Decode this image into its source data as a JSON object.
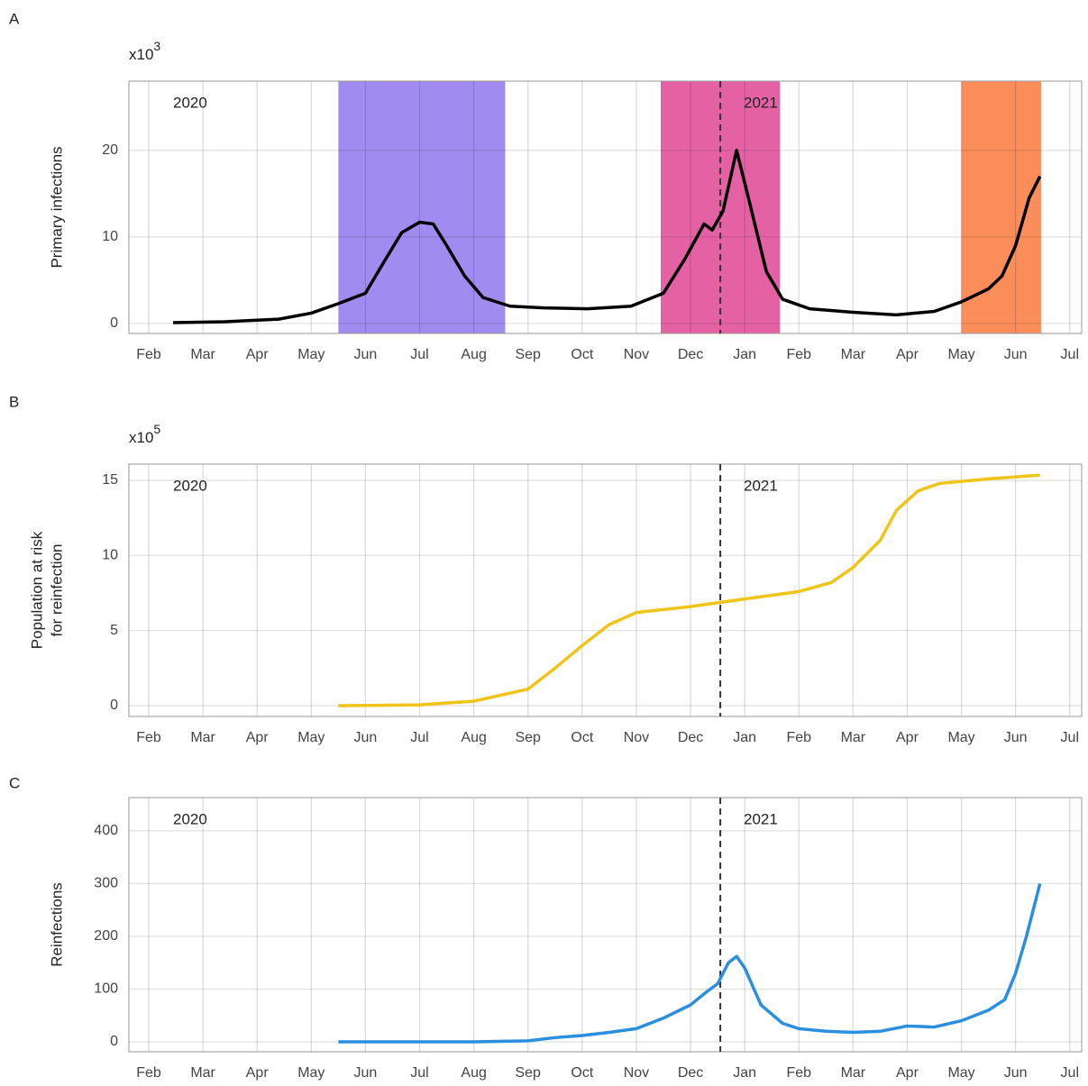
{
  "chart_data": [
    {
      "type": "line",
      "panel_label": "A",
      "scale_label": "x10",
      "scale_exponent": "3",
      "ylabel": [
        "Primary infections"
      ],
      "year_labels": [
        "2020",
        "2021"
      ],
      "reference_line": 10.55,
      "shaded_regions": [
        {
          "start": 3.5,
          "end": 6.58,
          "color": "#a08cf0"
        },
        {
          "start": 9.45,
          "end": 11.65,
          "color": "#e462a4"
        },
        {
          "start": 15.0,
          "end": 16.47,
          "color": "#fb8d5b"
        }
      ],
      "xlim": [
        -0.366,
        17.22
      ],
      "ylim": [
        -1.15,
        28.0
      ],
      "yticks": [
        0,
        10,
        20
      ],
      "xticks": [
        {
          "value": 0,
          "label": "Feb"
        },
        {
          "value": 1,
          "label": "Mar"
        },
        {
          "value": 2,
          "label": "Apr"
        },
        {
          "value": 3,
          "label": "May"
        },
        {
          "value": 4,
          "label": "Jun"
        },
        {
          "value": 5,
          "label": "Jul"
        },
        {
          "value": 6,
          "label": "Aug"
        },
        {
          "value": 7,
          "label": "Sep"
        },
        {
          "value": 8,
          "label": "Oct"
        },
        {
          "value": 9,
          "label": "Nov"
        },
        {
          "value": 10,
          "label": "Dec"
        },
        {
          "value": 11,
          "label": "Jan"
        },
        {
          "value": 12,
          "label": "Feb"
        },
        {
          "value": 13,
          "label": "Mar"
        },
        {
          "value": 14,
          "label": "Apr"
        },
        {
          "value": 15,
          "label": "May"
        },
        {
          "value": 16,
          "label": "Jun"
        },
        {
          "value": 17,
          "label": "Jul"
        }
      ],
      "color": "#000000",
      "x": [
        0.45,
        1.4,
        2.4,
        3.0,
        3.5,
        4.0,
        4.33,
        4.67,
        5.0,
        5.25,
        5.5,
        5.83,
        6.17,
        6.67,
        7.3,
        8.1,
        8.9,
        9.5,
        9.9,
        10.25,
        10.4,
        10.6,
        10.85,
        11.05,
        11.4,
        11.7,
        12.2,
        13.0,
        13.8,
        14.5,
        15.0,
        15.5,
        15.75,
        16.0,
        16.25,
        16.45
      ],
      "values": [
        0.1,
        0.2,
        0.5,
        1.2,
        2.3,
        3.5,
        7,
        10.5,
        11.7,
        11.5,
        9,
        5.5,
        3,
        2,
        1.8,
        1.7,
        2.0,
        3.5,
        7.5,
        11.5,
        10.8,
        13,
        20,
        15,
        6,
        2.8,
        1.7,
        1.3,
        1.0,
        1.4,
        2.5,
        4,
        5.5,
        9,
        14.5,
        17
      ]
    },
    {
      "type": "line",
      "panel_label": "B",
      "scale_label": "x10",
      "scale_exponent": "5",
      "ylabel": [
        "Population at risk",
        "for reinfection"
      ],
      "year_labels": [
        "2020",
        "2021"
      ],
      "reference_line": 10.55,
      "shaded_regions": [],
      "xlim": [
        -0.366,
        17.22
      ],
      "ylim": [
        -0.72,
        16.08
      ],
      "yticks": [
        0,
        5,
        10,
        15
      ],
      "xticks": [
        {
          "value": 0,
          "label": "Feb"
        },
        {
          "value": 1,
          "label": "Mar"
        },
        {
          "value": 2,
          "label": "Apr"
        },
        {
          "value": 3,
          "label": "May"
        },
        {
          "value": 4,
          "label": "Jun"
        },
        {
          "value": 5,
          "label": "Jul"
        },
        {
          "value": 6,
          "label": "Aug"
        },
        {
          "value": 7,
          "label": "Sep"
        },
        {
          "value": 8,
          "label": "Oct"
        },
        {
          "value": 9,
          "label": "Nov"
        },
        {
          "value": 10,
          "label": "Dec"
        },
        {
          "value": 11,
          "label": "Jan"
        },
        {
          "value": 12,
          "label": "Feb"
        },
        {
          "value": 13,
          "label": "Mar"
        },
        {
          "value": 14,
          "label": "Apr"
        },
        {
          "value": 15,
          "label": "May"
        },
        {
          "value": 16,
          "label": "Jun"
        },
        {
          "value": 17,
          "label": "Jul"
        }
      ],
      "color": "#f0c419",
      "x": [
        3.5,
        5.0,
        6.0,
        7.0,
        7.5,
        8.0,
        8.5,
        9.0,
        10.0,
        11.0,
        12.0,
        12.6,
        13.0,
        13.5,
        13.8,
        14.2,
        14.6,
        15.5,
        16.45
      ],
      "values": [
        0,
        0.05,
        0.3,
        1.1,
        2.5,
        4,
        5.4,
        6.2,
        6.6,
        7.1,
        7.6,
        8.2,
        9.2,
        11,
        13,
        14.3,
        14.8,
        15.1,
        15.35
      ]
    },
    {
      "type": "line",
      "panel_label": "C",
      "ylabel": [
        "Reinfections"
      ],
      "year_labels": [
        "2020",
        "2021"
      ],
      "reference_line": 10.55,
      "shaded_regions": [],
      "xlim": [
        -0.366,
        17.22
      ],
      "ylim": [
        -18.8,
        463
      ],
      "yticks": [
        0,
        100,
        200,
        300,
        400
      ],
      "xticks": [
        {
          "value": 0,
          "label": "Feb"
        },
        {
          "value": 1,
          "label": "Mar"
        },
        {
          "value": 2,
          "label": "Apr"
        },
        {
          "value": 3,
          "label": "May"
        },
        {
          "value": 4,
          "label": "Jun"
        },
        {
          "value": 5,
          "label": "Jul"
        },
        {
          "value": 6,
          "label": "Aug"
        },
        {
          "value": 7,
          "label": "Sep"
        },
        {
          "value": 8,
          "label": "Oct"
        },
        {
          "value": 9,
          "label": "Nov"
        },
        {
          "value": 10,
          "label": "Dec"
        },
        {
          "value": 11,
          "label": "Jan"
        },
        {
          "value": 12,
          "label": "Feb"
        },
        {
          "value": 13,
          "label": "Mar"
        },
        {
          "value": 14,
          "label": "Apr"
        },
        {
          "value": 15,
          "label": "May"
        },
        {
          "value": 16,
          "label": "Jun"
        },
        {
          "value": 17,
          "label": "Jul"
        }
      ],
      "color": "#2b8fe0",
      "x": [
        3.5,
        6.0,
        7.0,
        7.5,
        8.0,
        8.5,
        9.0,
        9.5,
        10.0,
        10.3,
        10.5,
        10.7,
        10.85,
        11.0,
        11.3,
        11.7,
        12.0,
        12.5,
        13.0,
        13.5,
        14.0,
        14.5,
        15.0,
        15.5,
        15.8,
        16.0,
        16.2,
        16.35,
        16.45
      ],
      "values": [
        0,
        0,
        2,
        8,
        12,
        18,
        25,
        45,
        70,
        95,
        110,
        150,
        162,
        140,
        70,
        35,
        25,
        20,
        18,
        20,
        30,
        28,
        40,
        60,
        80,
        130,
        200,
        260,
        300
      ]
    }
  ]
}
